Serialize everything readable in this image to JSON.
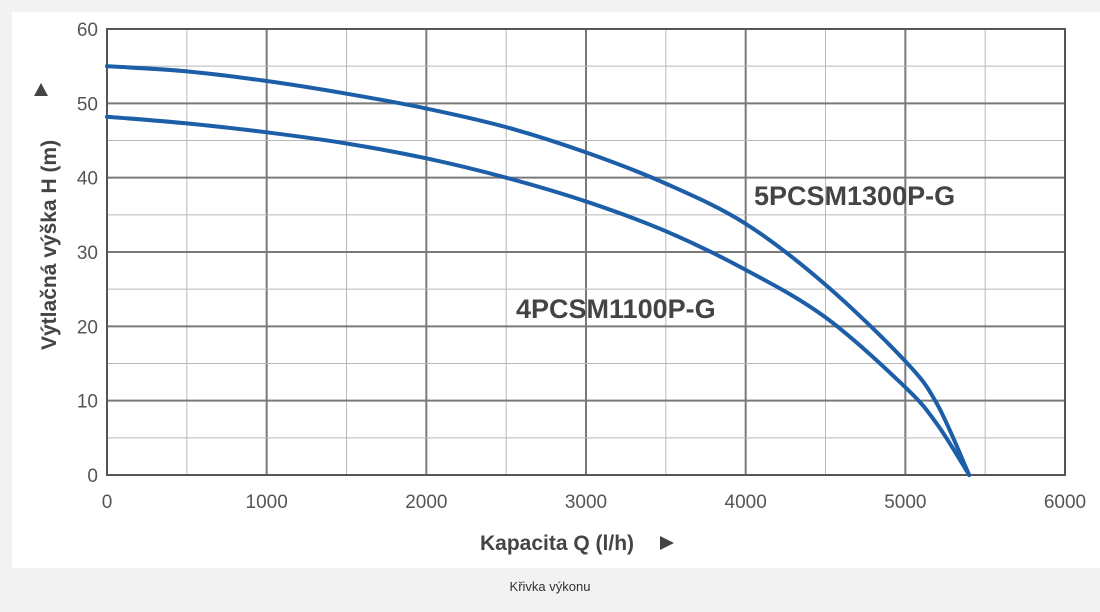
{
  "caption": "Křivka výkonu",
  "chart_data": {
    "type": "line",
    "xlabel": "Kapacita Q (l/h)",
    "ylabel": "Výtlačná výška H (m)",
    "xlim": [
      0,
      6000
    ],
    "ylim": [
      0,
      60
    ],
    "x_ticks": [
      "0",
      "1000",
      "2000",
      "3000",
      "4000",
      "5000",
      "6000"
    ],
    "y_ticks": [
      "0",
      "10",
      "20",
      "30",
      "40",
      "50",
      "60"
    ],
    "grid": true,
    "line_color": "#1c5ea8",
    "series": [
      {
        "name": "5PCSM1300P-G",
        "x": [
          0,
          500,
          1000,
          1500,
          2000,
          2500,
          3000,
          3500,
          4000,
          4500,
          5000,
          5200,
          5400
        ],
        "y": [
          55.0,
          54.3,
          53.0,
          51.3,
          49.3,
          46.8,
          43.4,
          39.2,
          33.8,
          25.6,
          15.3,
          9.5,
          0
        ]
      },
      {
        "name": "4PCSM1100P-G",
        "x": [
          0,
          500,
          1000,
          1500,
          2000,
          2500,
          3000,
          3500,
          4000,
          4500,
          5000,
          5200,
          5400
        ],
        "y": [
          48.2,
          47.3,
          46.1,
          44.6,
          42.6,
          40.0,
          36.8,
          32.8,
          27.6,
          21.2,
          11.8,
          6.8,
          0
        ]
      }
    ]
  }
}
